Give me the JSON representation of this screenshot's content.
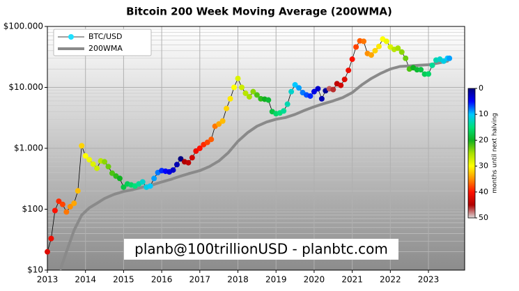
{
  "chart_data": {
    "type": "line",
    "title": "Bitcoin 200 Week Moving Average (200WMA)",
    "annotation": "planb@100trillionUSD  -  planbtc.com",
    "xlim": [
      2013,
      2023.95
    ],
    "xticks": [
      2013,
      2014,
      2015,
      2016,
      2017,
      2018,
      2019,
      2020,
      2021,
      2022,
      2023
    ],
    "ylim": [
      10,
      100000
    ],
    "log_y": true,
    "yticks": [
      {
        "value": 10,
        "label": "$10"
      },
      {
        "value": 100,
        "label": "$100"
      },
      {
        "value": 1000,
        "label": "$1.000"
      },
      {
        "value": 10000,
        "label": "$10.000"
      },
      {
        "value": 100000,
        "label": "$100.000"
      }
    ],
    "grid": true,
    "minor_grid": true,
    "legend": "upper left",
    "colorbar": {
      "label": "months until next halving",
      "clim": [
        0,
        50
      ],
      "ticks": [
        0,
        10,
        20,
        30,
        40,
        50
      ],
      "colormap": [
        "#00007f",
        "#0000ff",
        "#00c8ff",
        "#00e07a",
        "#10b020",
        "#a8e000",
        "#ffff00",
        "#ff9000",
        "#ff1000",
        "#b00000",
        "#dcdcdc"
      ]
    },
    "series": [
      {
        "name": "BTC/USD",
        "color": "#000000",
        "marker_color": "#1fe0ff",
        "x": [
          2013.0,
          2013.1,
          2013.2,
          2013.3,
          2013.4,
          2013.5,
          2013.6,
          2013.7,
          2013.8,
          2013.9,
          2014.0,
          2014.1,
          2014.2,
          2014.3,
          2014.4,
          2014.5,
          2014.6,
          2014.7,
          2014.8,
          2014.9,
          2015.0,
          2015.1,
          2015.2,
          2015.3,
          2015.4,
          2015.5,
          2015.6,
          2015.7,
          2015.8,
          2015.9,
          2016.0,
          2016.1,
          2016.2,
          2016.3,
          2016.4,
          2016.5,
          2016.6,
          2016.7,
          2016.8,
          2016.9,
          2017.0,
          2017.1,
          2017.2,
          2017.3,
          2017.4,
          2017.5,
          2017.6,
          2017.7,
          2017.8,
          2017.9,
          2018.0,
          2018.1,
          2018.2,
          2018.3,
          2018.4,
          2018.5,
          2018.6,
          2018.7,
          2018.8,
          2018.9,
          2019.0,
          2019.1,
          2019.2,
          2019.3,
          2019.4,
          2019.5,
          2019.6,
          2019.7,
          2019.8,
          2019.9,
          2020.0,
          2020.1,
          2020.2,
          2020.3,
          2020.4,
          2020.5,
          2020.6,
          2020.7,
          2020.8,
          2020.9,
          2021.0,
          2021.1,
          2021.2,
          2021.3,
          2021.4,
          2021.5,
          2021.6,
          2021.7,
          2021.8,
          2021.9,
          2022.0,
          2022.1,
          2022.2,
          2022.3,
          2022.4,
          2022.5,
          2022.6,
          2022.7,
          2022.8,
          2022.9,
          2023.0,
          2023.1,
          2023.2,
          2023.3,
          2023.4,
          2023.5,
          2023.55
        ],
        "values": [
          20,
          33,
          95,
          135,
          120,
          90,
          110,
          125,
          200,
          1100,
          750,
          650,
          550,
          470,
          620,
          600,
          500,
          390,
          350,
          320,
          230,
          260,
          250,
          240,
          260,
          280,
          230,
          240,
          320,
          400,
          430,
          420,
          410,
          440,
          540,
          670,
          600,
          580,
          700,
          900,
          1000,
          1150,
          1250,
          1400,
          2300,
          2500,
          2800,
          4500,
          6500,
          10000,
          14000,
          10000,
          8000,
          7000,
          8500,
          7500,
          6500,
          6400,
          6200,
          4000,
          3700,
          3800,
          4100,
          5300,
          8500,
          11000,
          9800,
          8200,
          7500,
          7200,
          8500,
          9500,
          6500,
          8800,
          9500,
          9200,
          11500,
          10800,
          13500,
          19000,
          29000,
          46000,
          58000,
          57000,
          36000,
          34000,
          40000,
          47000,
          62000,
          57000,
          46000,
          42000,
          44000,
          38000,
          30000,
          20000,
          21000,
          19500,
          19500,
          16500,
          16600,
          23000,
          28000,
          29000,
          27000,
          30000,
          30000
        ],
        "color_values": [
          42,
          41,
          40,
          39,
          38,
          36,
          35,
          34,
          33,
          32,
          30,
          29,
          28,
          27,
          26,
          24,
          23,
          22,
          21,
          20,
          18,
          17,
          16,
          15,
          14,
          12,
          11,
          10,
          9,
          8,
          6,
          5,
          4,
          3,
          2,
          0,
          45,
          44,
          43,
          41,
          40,
          39,
          38,
          37,
          36,
          34,
          33,
          32,
          31,
          30,
          28,
          27,
          26,
          25,
          24,
          22,
          21,
          20,
          19,
          18,
          16,
          15,
          14,
          13,
          12,
          10,
          9,
          8,
          7,
          6,
          4,
          3,
          2,
          1,
          47,
          46,
          44,
          43,
          42,
          41,
          40,
          38,
          37,
          36,
          35,
          34,
          32,
          31,
          30,
          29,
          28,
          26,
          25,
          24,
          23,
          22,
          20,
          19,
          18,
          17,
          16,
          14,
          13,
          12,
          11,
          10,
          9
        ]
      },
      {
        "name": "200WMA",
        "color": "#8a8a8a",
        "x": [
          2013.35,
          2013.5,
          2013.7,
          2013.9,
          2014.1,
          2014.3,
          2014.5,
          2014.75,
          2015.0,
          2015.25,
          2015.5,
          2015.75,
          2016.0,
          2016.25,
          2016.5,
          2016.75,
          2017.0,
          2017.25,
          2017.5,
          2017.75,
          2018.0,
          2018.25,
          2018.5,
          2018.75,
          2019.0,
          2019.25,
          2019.5,
          2019.75,
          2020.0,
          2020.25,
          2020.5,
          2020.75,
          2021.0,
          2021.25,
          2021.5,
          2021.75,
          2022.0,
          2022.25,
          2022.5,
          2022.75,
          2023.0,
          2023.25,
          2023.5
        ],
        "values": [
          10.5,
          20,
          45,
          80,
          105,
          125,
          150,
          175,
          195,
          210,
          230,
          250,
          280,
          310,
          350,
          390,
          430,
          500,
          620,
          850,
          1300,
          1800,
          2300,
          2700,
          3000,
          3200,
          3600,
          4200,
          4800,
          5400,
          6000,
          6800,
          8200,
          11000,
          14000,
          17000,
          20000,
          22000,
          22500,
          23000,
          23500,
          25000,
          27000
        ]
      }
    ]
  }
}
